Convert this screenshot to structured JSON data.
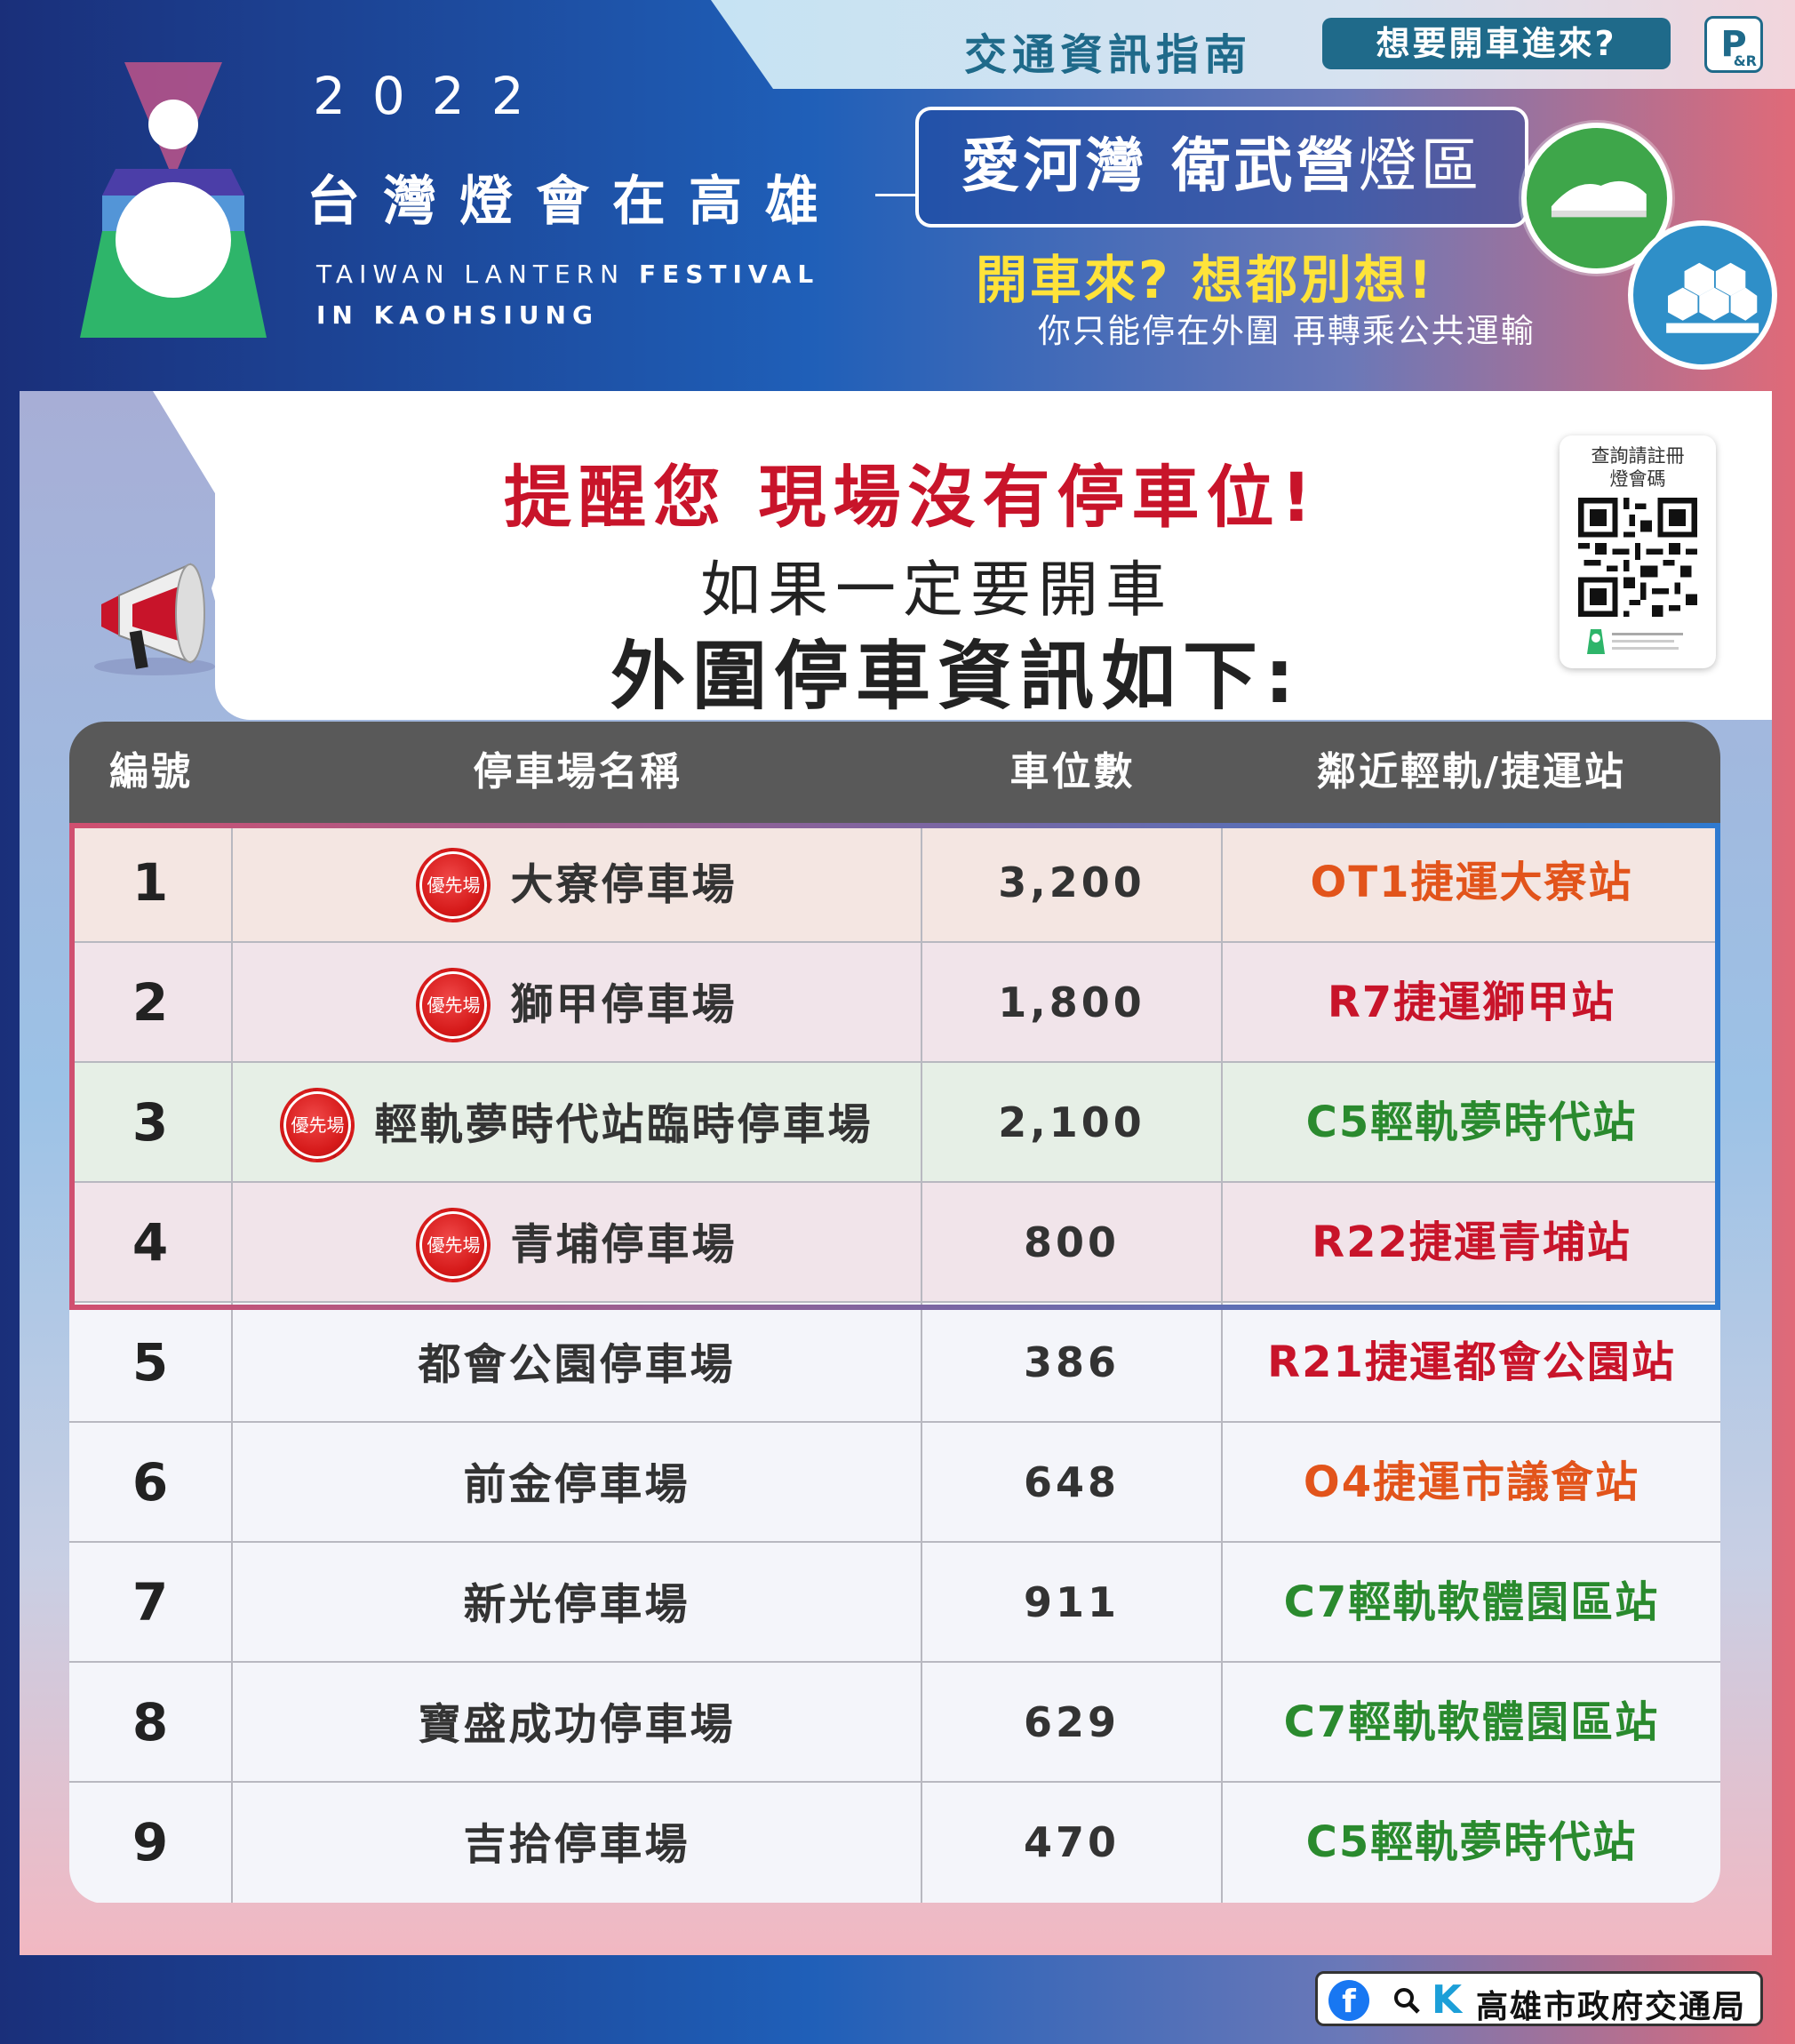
{
  "header": {
    "guide_title": "交通資訊指南",
    "drive_question": "想要開車進來?",
    "pr_icon": "P",
    "pr_icon_small": "&R",
    "year": "2022",
    "festival_zh": "台灣燈會在高雄",
    "festival_en_line1_a": "TAIWAN LANTERN ",
    "festival_en_line1_b": "FESTIVAL",
    "festival_en_line2": "IN KAOHSIUNG",
    "area_bold": "愛河灣 衛武營",
    "area_light": "燈區",
    "slogan": "開車來? 想都別想!",
    "slogan_sub": "你只能停在外圍 再轉乘公共運輸"
  },
  "notice": {
    "reminder": "提醒您 現場沒有停車位!",
    "if_drive": "如果一定要開車",
    "outer_info": "外圍停車資訊如下:",
    "qr_caption": "查詢請註冊燈會碼"
  },
  "table": {
    "headers": [
      "編號",
      "停車場名稱",
      "車位數",
      "鄰近輕軌/捷運站"
    ],
    "priority_label": "優先場",
    "rows": [
      {
        "no": "1",
        "name": "大寮停車場",
        "capacity": "3,200",
        "station": "OT1捷運大寮站",
        "priority": true
      },
      {
        "no": "2",
        "name": "獅甲停車場",
        "capacity": "1,800",
        "station": "R7捷運獅甲站",
        "priority": true
      },
      {
        "no": "3",
        "name": "輕軌夢時代站臨時停車場",
        "capacity": "2,100",
        "station": "C5輕軌夢時代站",
        "priority": true
      },
      {
        "no": "4",
        "name": "青埔停車場",
        "capacity": "800",
        "station": "R22捷運青埔站",
        "priority": true
      },
      {
        "no": "5",
        "name": "都會公園停車場",
        "capacity": "386",
        "station": "R21捷運都會公園站",
        "priority": false
      },
      {
        "no": "6",
        "name": "前金停車場",
        "capacity": "648",
        "station": "O4捷運市議會站",
        "priority": false
      },
      {
        "no": "7",
        "name": "新光停車場",
        "capacity": "911",
        "station": "C7輕軌軟體園區站",
        "priority": false
      },
      {
        "no": "8",
        "name": "寶盛成功停車場",
        "capacity": "629",
        "station": "C7輕軌軟體園區站",
        "priority": false
      },
      {
        "no": "9",
        "name": "吉拾停車場",
        "capacity": "470",
        "station": "C5輕軌夢時代站",
        "priority": false
      }
    ]
  },
  "footer": {
    "facebook_icon": "f",
    "k_logo": "K",
    "org_name": "高雄市政府交通局"
  },
  "colors": {
    "orange_line": "#e2541b",
    "red_line": "#c8142a",
    "green_line": "#2a8a2e",
    "priority_red": "#d61a1a"
  }
}
